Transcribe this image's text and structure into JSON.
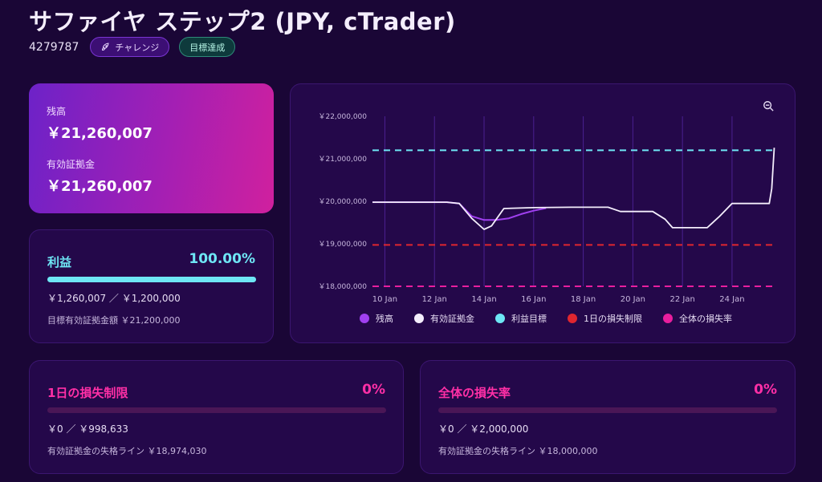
{
  "header": {
    "title": "サファイヤ ステップ2 (JPY, cTrader)",
    "account_id": "4279787",
    "badge_challenge": "チャレンジ",
    "badge_achieved": "目標達成"
  },
  "balance_card": {
    "balance_label": "残高",
    "balance_value": "￥21,260,007",
    "equity_label": "有効証拠金",
    "equity_value": "￥21,260,007"
  },
  "profit_card": {
    "title": "利益",
    "percent": "100.00%",
    "progress": 1.0,
    "amounts": "￥1,260,007 ／ ￥1,200,000",
    "target_text": "目標有効証拠金額 ￥21,200,000",
    "color": "#6ee6f5"
  },
  "daily_loss_card": {
    "title": "1日の損失制限",
    "percent": "0%",
    "progress": 0,
    "amounts": "￥0 ／ ￥998,633",
    "fail_text": "有効証拠金の失格ライン ￥18,974,030",
    "color": "#ff2fa6"
  },
  "overall_loss_card": {
    "title": "全体の損失率",
    "percent": "0%",
    "progress": 0,
    "amounts": "￥0 ／ ￥2,000,000",
    "fail_text": "有効証拠金の失格ライン ￥18,000,000",
    "color": "#ff2fa6"
  },
  "chart_data": {
    "type": "line",
    "x_ticks": [
      "10 Jan",
      "12 Jan",
      "14 Jan",
      "16 Jan",
      "18 Jan",
      "20 Jan",
      "22 Jan",
      "24 Jan"
    ],
    "y_ticks": [
      "￥22,000,000",
      "￥21,000,000",
      "￥20,000,000",
      "￥19,000,000",
      "￥18,000,000"
    ],
    "ylim": [
      18000000,
      22000000
    ],
    "xlim_days": [
      9.5,
      25.75
    ],
    "grid": "vertical",
    "legend_position": "bottom",
    "series": [
      {
        "name": "残高",
        "color": "#a040f0",
        "points": [
          [
            9.5,
            19980000
          ],
          [
            12.5,
            19980000
          ],
          [
            13.0,
            19950000
          ],
          [
            13.5,
            19650000
          ],
          [
            14.0,
            19560000
          ],
          [
            14.5,
            19560000
          ],
          [
            15.0,
            19600000
          ],
          [
            15.5,
            19700000
          ],
          [
            16.0,
            19780000
          ],
          [
            16.5,
            19840000
          ]
        ]
      },
      {
        "name": "有効証拠金",
        "color": "#f4eefc",
        "points": [
          [
            9.5,
            19980000
          ],
          [
            12.5,
            19980000
          ],
          [
            13.0,
            19950000
          ],
          [
            13.5,
            19600000
          ],
          [
            14.0,
            19340000
          ],
          [
            14.3,
            19420000
          ],
          [
            14.8,
            19830000
          ],
          [
            16.0,
            19850000
          ],
          [
            17.5,
            19860000
          ],
          [
            19.0,
            19860000
          ],
          [
            19.5,
            19760000
          ],
          [
            20.8,
            19760000
          ],
          [
            21.3,
            19580000
          ],
          [
            21.6,
            19380000
          ],
          [
            23.0,
            19380000
          ],
          [
            23.5,
            19650000
          ],
          [
            24.0,
            19950000
          ],
          [
            25.5,
            19950000
          ],
          [
            25.6,
            20300000
          ],
          [
            25.7,
            21260007
          ]
        ]
      },
      {
        "name": "利益目標",
        "color": "#6ee6f5",
        "constant": 21200000,
        "dashed": true
      },
      {
        "name": "1日の損失制限",
        "color": "#e0262f",
        "constant": 18974030,
        "dashed": true
      },
      {
        "name": "全体の損失率",
        "color": "#e91e9e",
        "constant": 18000000,
        "dashed": true
      }
    ]
  }
}
